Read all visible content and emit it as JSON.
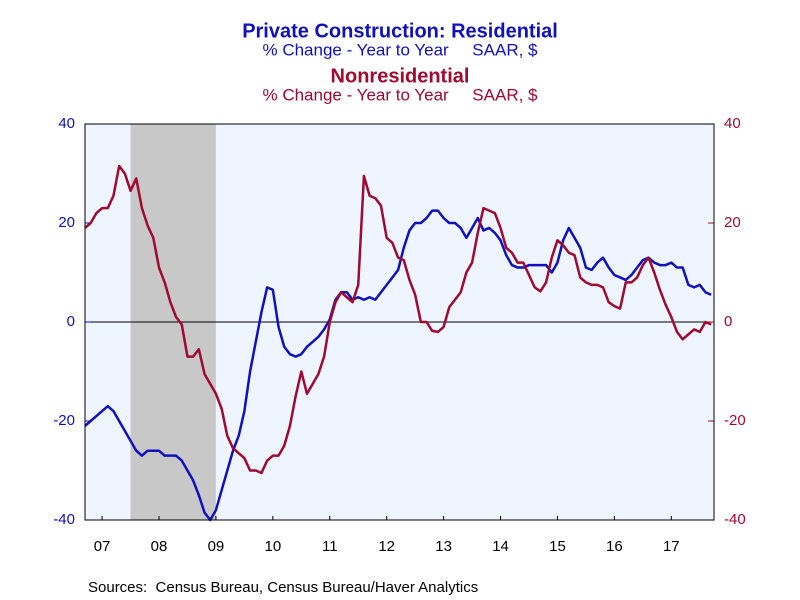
{
  "chart_data": {
    "type": "line",
    "title": "Private Construction: Residential",
    "subtitle": "% Change - Year to Year     SAAR, $",
    "title2": "Nonresidential",
    "subtitle2": "% Change - Year to Year     SAAR, $",
    "source": "Sources:  Census Bureau, Census Bureau/Haver Analytics",
    "x": [
      2007.2,
      2007.3,
      2007.4,
      2007.5,
      2007.6,
      2007.7,
      2007.8,
      2007.9,
      2008.0,
      2008.1,
      2008.2,
      2008.3,
      2008.4,
      2008.5,
      2008.6,
      2008.7,
      2008.8,
      2008.9,
      2009.0,
      2009.1,
      2009.2,
      2009.3,
      2009.4,
      2009.5,
      2009.6,
      2009.7,
      2009.8,
      2009.9,
      2010.0,
      2010.1,
      2010.2,
      2010.3,
      2010.4,
      2010.5,
      2010.6,
      2010.7,
      2010.8,
      2010.9,
      2011.0,
      2011.1,
      2011.2,
      2011.3,
      2011.4,
      2011.5,
      2011.6,
      2011.7,
      2011.8,
      2011.9,
      2012.0,
      2012.1,
      2012.2,
      2012.3,
      2012.4,
      2012.5,
      2012.6,
      2012.7,
      2012.8,
      2012.9,
      2013.0,
      2013.1,
      2013.2,
      2013.3,
      2013.4,
      2013.5,
      2013.6,
      2013.7,
      2013.8,
      2013.9,
      2014.0,
      2014.1,
      2014.2,
      2014.3,
      2014.4,
      2014.5,
      2014.6,
      2014.7,
      2014.8,
      2014.9,
      2015.0,
      2015.1,
      2015.2,
      2015.3,
      2015.4,
      2015.5,
      2015.6,
      2015.7,
      2015.8,
      2015.9,
      2016.0,
      2016.1,
      2016.2,
      2016.3,
      2016.4,
      2016.5,
      2016.6,
      2016.7,
      2016.8,
      2016.9,
      2017.0,
      2017.1,
      2017.2,
      2017.3,
      2017.4,
      2017.5,
      2017.6,
      2017.7,
      2017.8,
      2017.9,
      2018.0,
      2018.1,
      2018.2
    ],
    "series": [
      {
        "name": "Residential",
        "color": "#1010c0",
        "axis": "y",
        "values": [
          -21,
          -20,
          -19,
          -18,
          -17,
          -18,
          -20,
          -22,
          -24,
          -26,
          -27,
          -26,
          -26,
          -26,
          -27,
          -27,
          -27,
          -28,
          -30,
          -32,
          -35,
          -38.5,
          -40,
          -38,
          -34,
          -30,
          -26,
          -23,
          -18,
          -10,
          -4,
          2,
          7,
          6.5,
          -1,
          -5,
          -6.5,
          -7,
          -6.5,
          -5,
          -4,
          -3,
          -1.5,
          0.5,
          4.5,
          6,
          6,
          4.5,
          5,
          4.5,
          5,
          4.5,
          6,
          7.5,
          9,
          10.5,
          15,
          18.5,
          20,
          20,
          21,
          22.5,
          22.5,
          21,
          20,
          20,
          19,
          17,
          19,
          21,
          18.5,
          19,
          18,
          16.5,
          13.5,
          11.5,
          11,
          11,
          11.5,
          11.5,
          11.5,
          11.5,
          10,
          12,
          16.5,
          19,
          17,
          15,
          11,
          10.5,
          12,
          13,
          11,
          9.5,
          9,
          8.5,
          9.5,
          11,
          12.5,
          13,
          12,
          11.5,
          11.5,
          12,
          11,
          11,
          7.5,
          7,
          7.5,
          6,
          5.5
        ]
      },
      {
        "name": "Nonresidential",
        "color": "#a00a30",
        "axis": "y2",
        "values": [
          19,
          20,
          22,
          23,
          23,
          25.5,
          31.5,
          30,
          26.5,
          29,
          23,
          19.5,
          17,
          11,
          8,
          4,
          1,
          -0.5,
          -7,
          -7,
          -5.5,
          -10.5,
          -12.5,
          -14.5,
          -17.5,
          -23,
          -25.5,
          -26.5,
          -27.5,
          -30,
          -30,
          -30.5,
          -28,
          -27,
          -27,
          -25,
          -21,
          -15,
          -10,
          -14.5,
          -12.5,
          -10.5,
          -7,
          0,
          4,
          6,
          5,
          4,
          7.5,
          29.5,
          25.5,
          25,
          23.5,
          17,
          16,
          13,
          12.5,
          8.5,
          5.5,
          0,
          0,
          -1.8,
          -2,
          -1,
          3,
          4.5,
          6,
          10,
          12,
          18,
          23,
          22.5,
          22,
          19,
          15,
          14,
          12,
          12,
          9.5,
          7,
          6.2,
          8,
          13,
          16.5,
          15.5,
          14,
          13.5,
          9,
          8,
          7.5,
          7.5,
          7,
          4,
          3.2,
          2.7,
          8,
          8,
          9,
          11.5,
          13,
          10,
          6.5,
          3.5,
          1,
          -2,
          -3.5,
          -2.5,
          -1.5,
          -2,
          0,
          -0.5
        ]
      }
    ],
    "xlim": [
      2007.2,
      2018.25
    ],
    "xticks": [
      {
        "value": 2007.5,
        "label": "07"
      },
      {
        "value": 2008.5,
        "label": "08"
      },
      {
        "value": 2009.5,
        "label": "09"
      },
      {
        "value": 2010.5,
        "label": "10"
      },
      {
        "value": 2011.5,
        "label": "11"
      },
      {
        "value": 2012.5,
        "label": "12"
      },
      {
        "value": 2013.5,
        "label": "13"
      },
      {
        "value": 2014.5,
        "label": "14"
      },
      {
        "value": 2015.5,
        "label": "15"
      },
      {
        "value": 2016.5,
        "label": "16"
      },
      {
        "value": 2017.5,
        "label": "17"
      }
    ],
    "ylim": [
      -40,
      40
    ],
    "yticks": [
      -40,
      -20,
      0,
      20,
      40
    ],
    "y2lim": [
      -40,
      40
    ],
    "y2ticks": [
      -40,
      -20,
      0,
      20,
      40
    ],
    "shaded_ranges": [
      [
        2008.0,
        2009.5
      ]
    ]
  }
}
